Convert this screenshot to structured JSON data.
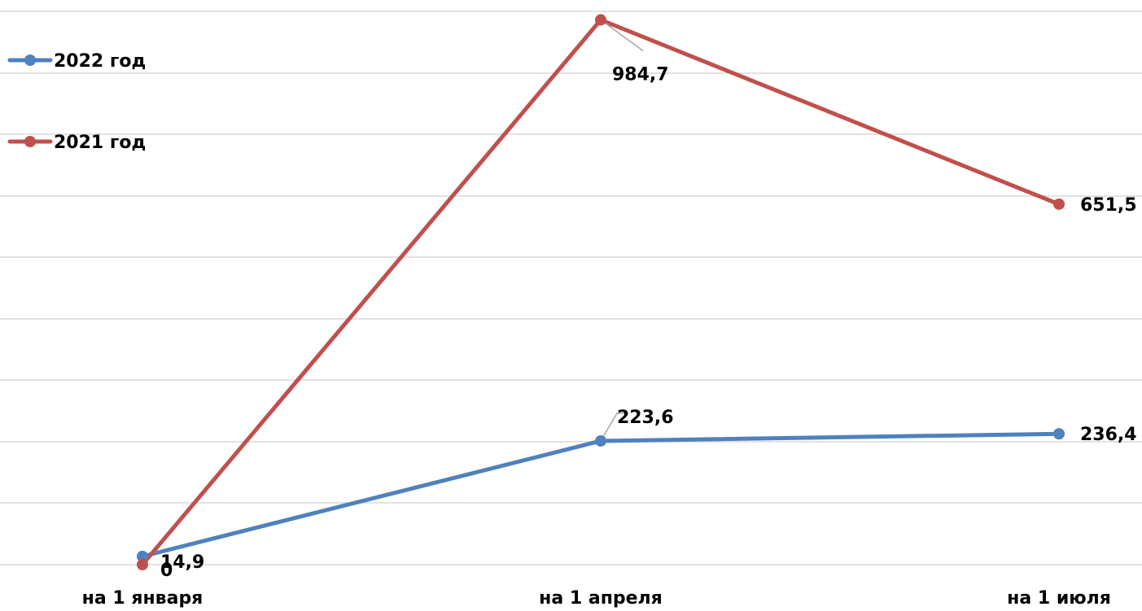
{
  "chart_data": {
    "type": "line",
    "categories": [
      "на 1 января",
      "на 1 апреля",
      "на 1 июля"
    ],
    "series": [
      {
        "name": "2022 год",
        "values": [
          14.9,
          223.6,
          236.4
        ],
        "labels": [
          "14,9",
          "223,6",
          "236,4"
        ],
        "color": "#4f81bd"
      },
      {
        "name": "2021 год",
        "values": [
          0,
          984.7,
          651.5
        ],
        "labels": [
          "0",
          "984,7",
          "651,5"
        ],
        "color": "#c0504d"
      }
    ],
    "ylim": [
      0,
      1000
    ],
    "grid": true,
    "legend_position": "top-left"
  }
}
